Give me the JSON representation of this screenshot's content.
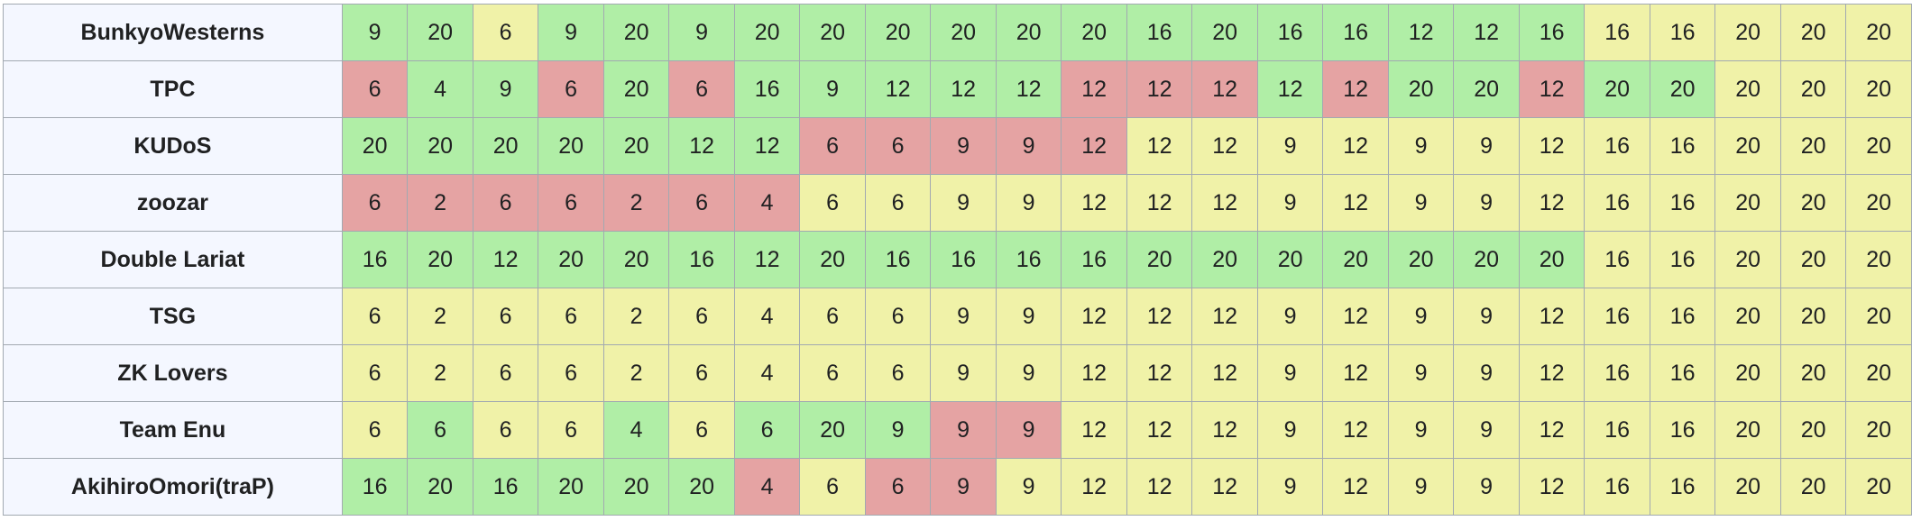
{
  "status_colors": {
    "g": "#b0eea6",
    "y": "#f0f2a8",
    "r": "#e5a3a3",
    "team_background": "#f4f7ff",
    "border": "#a2a9b1"
  },
  "teams": [
    {
      "name": "BunkyoWesterns",
      "scores": [
        9,
        20,
        6,
        9,
        20,
        9,
        20,
        20,
        20,
        20,
        20,
        20,
        16,
        20,
        16,
        16,
        12,
        12,
        16,
        16,
        16,
        20,
        20,
        20
      ],
      "status": [
        "g",
        "g",
        "y",
        "g",
        "g",
        "g",
        "g",
        "g",
        "g",
        "g",
        "g",
        "g",
        "g",
        "g",
        "g",
        "g",
        "g",
        "g",
        "g",
        "y",
        "y",
        "y",
        "y",
        "y"
      ]
    },
    {
      "name": "TPC",
      "scores": [
        6,
        4,
        9,
        6,
        20,
        6,
        16,
        9,
        12,
        12,
        12,
        12,
        12,
        12,
        12,
        12,
        20,
        20,
        12,
        20,
        20,
        20,
        20,
        20
      ],
      "status": [
        "r",
        "g",
        "g",
        "r",
        "g",
        "r",
        "g",
        "g",
        "g",
        "g",
        "g",
        "r",
        "r",
        "r",
        "g",
        "r",
        "g",
        "g",
        "r",
        "g",
        "g",
        "y",
        "y",
        "y"
      ]
    },
    {
      "name": "KUDoS",
      "scores": [
        20,
        20,
        20,
        20,
        20,
        12,
        12,
        6,
        6,
        9,
        9,
        12,
        12,
        12,
        9,
        12,
        9,
        9,
        12,
        16,
        16,
        20,
        20,
        20
      ],
      "status": [
        "g",
        "g",
        "g",
        "g",
        "g",
        "g",
        "g",
        "r",
        "r",
        "r",
        "r",
        "r",
        "y",
        "y",
        "y",
        "y",
        "y",
        "y",
        "y",
        "y",
        "y",
        "y",
        "y",
        "y"
      ]
    },
    {
      "name": "zoozar",
      "scores": [
        6,
        2,
        6,
        6,
        2,
        6,
        4,
        6,
        6,
        9,
        9,
        12,
        12,
        12,
        9,
        12,
        9,
        9,
        12,
        16,
        16,
        20,
        20,
        20
      ],
      "status": [
        "r",
        "r",
        "r",
        "r",
        "r",
        "r",
        "r",
        "y",
        "y",
        "y",
        "y",
        "y",
        "y",
        "y",
        "y",
        "y",
        "y",
        "y",
        "y",
        "y",
        "y",
        "y",
        "y",
        "y"
      ]
    },
    {
      "name": "Double Lariat",
      "scores": [
        16,
        20,
        12,
        20,
        20,
        16,
        12,
        20,
        16,
        16,
        16,
        16,
        20,
        20,
        20,
        20,
        20,
        20,
        20,
        16,
        16,
        20,
        20,
        20
      ],
      "status": [
        "g",
        "g",
        "g",
        "g",
        "g",
        "g",
        "g",
        "g",
        "g",
        "g",
        "g",
        "g",
        "g",
        "g",
        "g",
        "g",
        "g",
        "g",
        "g",
        "y",
        "y",
        "y",
        "y",
        "y"
      ]
    },
    {
      "name": "TSG",
      "scores": [
        6,
        2,
        6,
        6,
        2,
        6,
        4,
        6,
        6,
        9,
        9,
        12,
        12,
        12,
        9,
        12,
        9,
        9,
        12,
        16,
        16,
        20,
        20,
        20
      ],
      "status": [
        "y",
        "y",
        "y",
        "y",
        "y",
        "y",
        "y",
        "y",
        "y",
        "y",
        "y",
        "y",
        "y",
        "y",
        "y",
        "y",
        "y",
        "y",
        "y",
        "y",
        "y",
        "y",
        "y",
        "y"
      ]
    },
    {
      "name": "ZK Lovers",
      "scores": [
        6,
        2,
        6,
        6,
        2,
        6,
        4,
        6,
        6,
        9,
        9,
        12,
        12,
        12,
        9,
        12,
        9,
        9,
        12,
        16,
        16,
        20,
        20,
        20
      ],
      "status": [
        "y",
        "y",
        "y",
        "y",
        "y",
        "y",
        "y",
        "y",
        "y",
        "y",
        "y",
        "y",
        "y",
        "y",
        "y",
        "y",
        "y",
        "y",
        "y",
        "y",
        "y",
        "y",
        "y",
        "y"
      ]
    },
    {
      "name": "Team Enu",
      "scores": [
        6,
        6,
        6,
        6,
        4,
        6,
        6,
        20,
        9,
        9,
        9,
        12,
        12,
        12,
        9,
        12,
        9,
        9,
        12,
        16,
        16,
        20,
        20,
        20
      ],
      "status": [
        "y",
        "g",
        "y",
        "y",
        "g",
        "y",
        "g",
        "g",
        "g",
        "r",
        "r",
        "y",
        "y",
        "y",
        "y",
        "y",
        "y",
        "y",
        "y",
        "y",
        "y",
        "y",
        "y",
        "y"
      ]
    },
    {
      "name": "AkihiroOmori(traP)",
      "scores": [
        16,
        20,
        16,
        20,
        20,
        20,
        4,
        6,
        6,
        9,
        9,
        12,
        12,
        12,
        9,
        12,
        9,
        9,
        12,
        16,
        16,
        20,
        20,
        20
      ],
      "status": [
        "g",
        "g",
        "g",
        "g",
        "g",
        "g",
        "r",
        "y",
        "r",
        "r",
        "y",
        "y",
        "y",
        "y",
        "y",
        "y",
        "y",
        "y",
        "y",
        "y",
        "y",
        "y",
        "y",
        "y"
      ]
    }
  ]
}
